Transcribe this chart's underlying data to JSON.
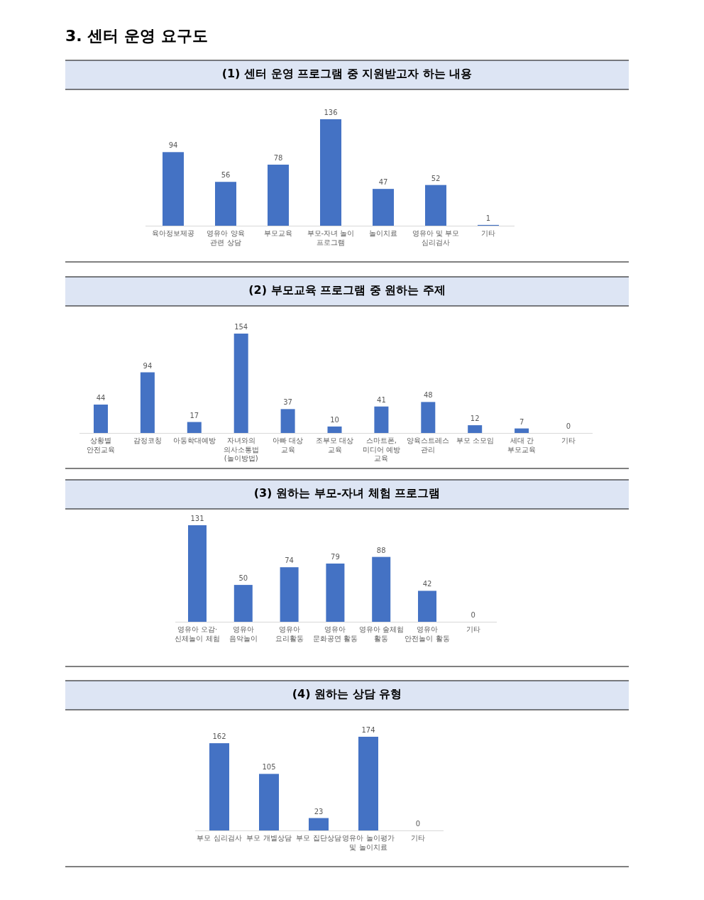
{
  "chart_data": [
    {
      "type": "bar",
      "title": "3. 센터 운영 요구도",
      "subtitle": "(1) 센터 운영 프로그램 중 지원받고자 하는 내용",
      "categories": [
        "육아정보제공",
        "영유아 양육 관련 상담",
        "부모교육",
        "부모-자녀 놀이 프로그램",
        "놀이치료",
        "영유아 및 부모 심리검사",
        "기타"
      ],
      "values": [
        94,
        56,
        78,
        136,
        47,
        52,
        1
      ],
      "color": "#4472c4",
      "data_labels": true
    },
    {
      "type": "bar",
      "title": "(2) 부모교육 프로그램 중 원하는 주제",
      "categories": [
        "상황별 안전교육",
        "감정코칭",
        "아동학대예방",
        "자녀와의 의사소통법(놀이방법)",
        "아빠 대상 교육",
        "조부모 대상 교육",
        "스마트폰, 미디어 예방 교육",
        "양육스트레스 관리",
        "부모 소모임",
        "세대 간 부모교육",
        "기타"
      ],
      "values": [
        44,
        94,
        17,
        154,
        37,
        10,
        41,
        48,
        12,
        7,
        0
      ],
      "color": "#4472c4",
      "data_labels": true
    },
    {
      "type": "bar",
      "title": "(3) 원하는 부모-자녀 체험 프로그램",
      "categories": [
        "영유아 오감·신체놀이 체험",
        "영유아 음악놀이",
        "영유아 요리활동",
        "영유아 문화공연 활동",
        "영유아 숲체험 활동",
        "영유아 안전놀이 활동",
        "기타"
      ],
      "values": [
        131,
        50,
        74,
        79,
        88,
        42,
        0
      ],
      "color": "#4472c4",
      "data_labels": true
    },
    {
      "type": "bar",
      "title": "(4) 원하는 상담 유형",
      "categories": [
        "부모 심리검사",
        "부모 개별상담",
        "부모 집단상담",
        "영유아 놀이평가 및 놀이치료",
        "기타"
      ],
      "values": [
        162,
        105,
        23,
        174,
        0
      ],
      "color": "#4472c4",
      "data_labels": true
    }
  ]
}
